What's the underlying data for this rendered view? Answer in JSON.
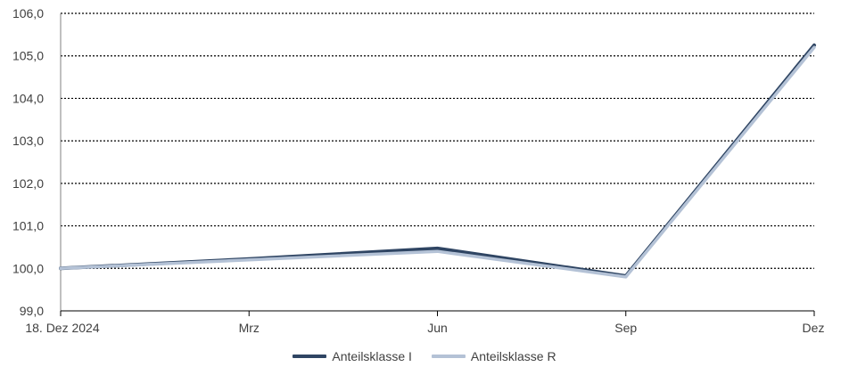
{
  "chart_data": {
    "type": "line",
    "title": "",
    "xlabel": "",
    "ylabel": "",
    "x_tick_labels": [
      "18. Dez 2024",
      "Mrz",
      "Jun",
      "Sep",
      "Dez"
    ],
    "y_tick_labels": [
      "99,0",
      "100,0",
      "101,0",
      "102,0",
      "103,0",
      "104,0",
      "105,0",
      "106,0"
    ],
    "ylim": [
      99.0,
      106.0
    ],
    "grid": "horizontal dotted",
    "legend_position": "bottom-center",
    "x": [
      0,
      1,
      2,
      3,
      4
    ],
    "series": [
      {
        "name": "Anteilsklasse I",
        "color": "#2f4563",
        "values": [
          100.0,
          100.22,
          100.47,
          99.82,
          105.25
        ]
      },
      {
        "name": "Anteilsklasse R",
        "color": "#b4c2d6",
        "values": [
          100.0,
          100.2,
          100.4,
          99.8,
          105.2
        ]
      }
    ]
  }
}
